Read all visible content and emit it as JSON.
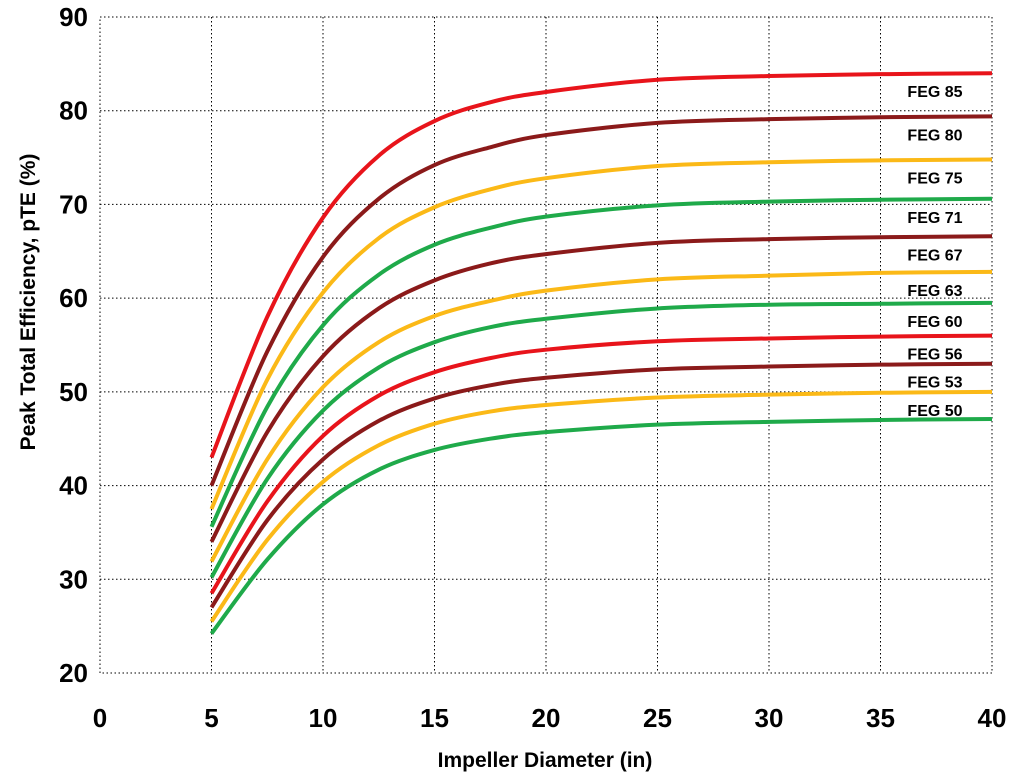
{
  "chart_data": {
    "type": "line",
    "title": "",
    "xlabel": "Impeller Diameter (in)",
    "ylabel": "Peak Total Efficiency, pTE (%)",
    "xlim": [
      0,
      40
    ],
    "ylim": [
      20,
      90
    ],
    "x_ticks": [
      0,
      5,
      10,
      15,
      20,
      25,
      30,
      35,
      40
    ],
    "y_ticks": [
      20,
      30,
      40,
      50,
      60,
      70,
      80,
      90
    ],
    "grid": true,
    "legend": "labels at right end of each line",
    "colors": {
      "red": "#e8141b",
      "dark_red": "#8b1a1a",
      "yellow": "#fbb917",
      "green": "#1faa4a"
    },
    "x": [
      5,
      7.5,
      10,
      12.5,
      15,
      17.5,
      20,
      25,
      30,
      35,
      40
    ],
    "series": [
      {
        "name": "FEG 85",
        "color": "#e8141b",
        "values": [
          43.0,
          58.0,
          68.6,
          75.2,
          78.9,
          80.9,
          82.0,
          83.3,
          83.7,
          83.9,
          84.0
        ]
      },
      {
        "name": "FEG 80",
        "color": "#8b1a1a",
        "values": [
          40.0,
          54.3,
          64.4,
          70.6,
          74.2,
          76.1,
          77.4,
          78.7,
          79.1,
          79.3,
          79.4
        ]
      },
      {
        "name": "FEG 75",
        "color": "#fbb917",
        "values": [
          37.5,
          51.3,
          60.6,
          66.4,
          69.7,
          71.6,
          72.8,
          74.1,
          74.5,
          74.7,
          74.8
        ]
      },
      {
        "name": "FEG 71",
        "color": "#1faa4a",
        "values": [
          35.6,
          48.4,
          57.1,
          62.5,
          65.7,
          67.5,
          68.7,
          69.9,
          70.3,
          70.5,
          70.6
        ]
      },
      {
        "name": "FEG 67",
        "color": "#8b1a1a",
        "values": [
          34.0,
          45.7,
          53.8,
          58.9,
          61.9,
          63.7,
          64.7,
          65.9,
          66.3,
          66.5,
          66.6
        ]
      },
      {
        "name": "FEG 63",
        "color": "#fbb917",
        "values": [
          31.9,
          42.8,
          50.5,
          55.3,
          58.1,
          59.7,
          60.8,
          62.0,
          62.4,
          62.7,
          62.8
        ]
      },
      {
        "name": "FEG 60",
        "color": "#1faa4a",
        "values": [
          30.2,
          40.7,
          48.0,
          52.6,
          55.3,
          56.9,
          57.8,
          58.9,
          59.3,
          59.4,
          59.5
        ]
      },
      {
        "name": "FEG 56",
        "color": "#e8141b",
        "values": [
          28.5,
          38.3,
          45.3,
          49.6,
          52.1,
          53.6,
          54.5,
          55.4,
          55.7,
          55.9,
          56.0
        ]
      },
      {
        "name": "FEG 53",
        "color": "#8b1a1a",
        "values": [
          27.0,
          36.3,
          42.8,
          46.9,
          49.3,
          50.7,
          51.5,
          52.4,
          52.7,
          52.9,
          53.0
        ]
      },
      {
        "name": "FEG 50",
        "color": "#fbb917",
        "values": [
          25.5,
          34.2,
          40.4,
          44.3,
          46.6,
          47.9,
          48.6,
          49.4,
          49.7,
          49.9,
          50.0
        ]
      },
      {
        "name": "",
        "color": "#1faa4a",
        "values": [
          24.2,
          32.1,
          38.0,
          41.7,
          43.8,
          45.0,
          45.7,
          46.5,
          46.8,
          47.0,
          47.1
        ]
      }
    ]
  }
}
